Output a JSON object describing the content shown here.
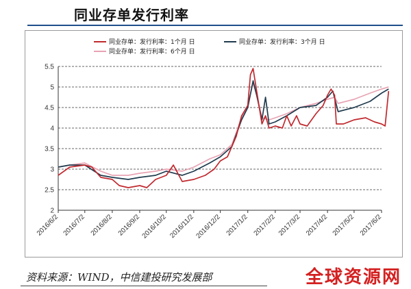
{
  "header": {
    "title": "同业存单发行利率"
  },
  "footer": {
    "source": "资料来源：WIND，中信建投研究发展部",
    "watermark": "全球资源网"
  },
  "chart_data": {
    "type": "line",
    "title": "同业存单发行利率",
    "xlabel": "",
    "ylabel": "",
    "ylim": [
      2,
      5.5
    ],
    "yticks": [
      2,
      2.5,
      3,
      3.5,
      4,
      4.5,
      5,
      5.5
    ],
    "xticks": [
      "2016/6/2",
      "2016/7/2",
      "2016/8/2",
      "2016/9/2",
      "2016/10/2",
      "2016/11/2",
      "2016/12/2",
      "2017/1/2",
      "2017/2/2",
      "2017/3/2",
      "2017/4/2",
      "2017/5/2",
      "2017/6/2"
    ],
    "grid": "horizontal dashed",
    "legend_position": "top-left",
    "series": [
      {
        "name": "同业存单：发行利率：1个月 日",
        "color": "#c0282d",
        "points": [
          [
            "2016/6/2",
            2.85
          ],
          [
            "2016/6/15",
            3.05
          ],
          [
            "2016/7/2",
            3.1
          ],
          [
            "2016/7/10",
            3.05
          ],
          [
            "2016/7/20",
            2.8
          ],
          [
            "2016/8/2",
            2.75
          ],
          [
            "2016/8/10",
            2.6
          ],
          [
            "2016/8/20",
            2.55
          ],
          [
            "2016/9/2",
            2.6
          ],
          [
            "2016/9/10",
            2.55
          ],
          [
            "2016/9/20",
            2.75
          ],
          [
            "2016/10/2",
            2.85
          ],
          [
            "2016/10/10",
            3.1
          ],
          [
            "2016/10/20",
            2.7
          ],
          [
            "2016/11/2",
            2.75
          ],
          [
            "2016/11/15",
            2.85
          ],
          [
            "2016/11/25",
            3.0
          ],
          [
            "2016/12/2",
            3.2
          ],
          [
            "2016/12/10",
            3.3
          ],
          [
            "2016/12/20",
            3.8
          ],
          [
            "2016/12/26",
            4.3
          ],
          [
            "2017/1/2",
            4.55
          ],
          [
            "2017/1/5",
            5.3
          ],
          [
            "2017/1/8",
            5.45
          ],
          [
            "2017/1/12",
            4.9
          ],
          [
            "2017/1/18",
            4.1
          ],
          [
            "2017/1/22",
            4.3
          ],
          [
            "2017/1/26",
            4.0
          ],
          [
            "2017/2/2",
            4.05
          ],
          [
            "2017/2/10",
            4.0
          ],
          [
            "2017/2/15",
            4.3
          ],
          [
            "2017/2/20",
            4.05
          ],
          [
            "2017/2/26",
            4.3
          ],
          [
            "2017/3/2",
            4.1
          ],
          [
            "2017/3/10",
            4.05
          ],
          [
            "2017/3/20",
            4.35
          ],
          [
            "2017/3/28",
            4.55
          ],
          [
            "2017/4/2",
            4.8
          ],
          [
            "2017/4/6",
            4.95
          ],
          [
            "2017/4/10",
            4.8
          ],
          [
            "2017/4/12",
            4.1
          ],
          [
            "2017/4/20",
            4.1
          ],
          [
            "2017/5/2",
            4.2
          ],
          [
            "2017/5/15",
            4.25
          ],
          [
            "2017/5/25",
            4.15
          ],
          [
            "2017/6/2",
            4.1
          ],
          [
            "2017/6/6",
            4.05
          ],
          [
            "2017/6/10",
            4.9
          ]
        ]
      },
      {
        "name": "同业存单：发行利率：3个月 日",
        "color": "#1f3a4d",
        "points": [
          [
            "2016/6/2",
            3.05
          ],
          [
            "2016/6/15",
            3.1
          ],
          [
            "2016/7/2",
            3.1
          ],
          [
            "2016/7/20",
            2.85
          ],
          [
            "2016/8/2",
            2.8
          ],
          [
            "2016/8/20",
            2.75
          ],
          [
            "2016/9/2",
            2.8
          ],
          [
            "2016/9/20",
            2.85
          ],
          [
            "2016/10/2",
            2.95
          ],
          [
            "2016/10/20",
            2.85
          ],
          [
            "2016/11/2",
            2.95
          ],
          [
            "2016/11/20",
            3.15
          ],
          [
            "2016/12/2",
            3.3
          ],
          [
            "2016/12/15",
            3.55
          ],
          [
            "2016/12/26",
            4.2
          ],
          [
            "2017/1/2",
            4.5
          ],
          [
            "2017/1/8",
            5.15
          ],
          [
            "2017/1/12",
            4.8
          ],
          [
            "2017/1/18",
            4.2
          ],
          [
            "2017/1/22",
            4.75
          ],
          [
            "2017/1/26",
            4.1
          ],
          [
            "2017/2/2",
            4.15
          ],
          [
            "2017/2/15",
            4.3
          ],
          [
            "2017/3/2",
            4.5
          ],
          [
            "2017/3/20",
            4.55
          ],
          [
            "2017/4/2",
            4.75
          ],
          [
            "2017/4/8",
            4.9
          ],
          [
            "2017/4/14",
            4.4
          ],
          [
            "2017/5/2",
            4.5
          ],
          [
            "2017/5/20",
            4.65
          ],
          [
            "2017/6/2",
            4.85
          ],
          [
            "2017/6/10",
            4.95
          ]
        ]
      },
      {
        "name": "同业存单：发行利率：6个月 日",
        "color": "#e7a3b3",
        "points": [
          [
            "2016/6/2",
            3.05
          ],
          [
            "2016/6/15",
            3.1
          ],
          [
            "2016/7/2",
            3.15
          ],
          [
            "2016/7/20",
            2.95
          ],
          [
            "2016/8/2",
            2.85
          ],
          [
            "2016/8/20",
            2.85
          ],
          [
            "2016/9/2",
            2.9
          ],
          [
            "2016/9/20",
            2.95
          ],
          [
            "2016/10/2",
            3.0
          ],
          [
            "2016/10/20",
            2.95
          ],
          [
            "2016/11/2",
            3.05
          ],
          [
            "2016/11/20",
            3.25
          ],
          [
            "2016/12/2",
            3.35
          ],
          [
            "2016/12/15",
            3.6
          ],
          [
            "2016/12/26",
            4.25
          ],
          [
            "2017/1/2",
            4.55
          ],
          [
            "2017/1/8",
            5.1
          ],
          [
            "2017/1/12",
            4.8
          ],
          [
            "2017/1/18",
            4.25
          ],
          [
            "2017/1/26",
            4.2
          ],
          [
            "2017/2/2",
            4.25
          ],
          [
            "2017/2/15",
            4.35
          ],
          [
            "2017/3/2",
            4.5
          ],
          [
            "2017/3/20",
            4.6
          ],
          [
            "2017/4/2",
            4.7
          ],
          [
            "2017/4/10",
            4.75
          ],
          [
            "2017/4/14",
            4.6
          ],
          [
            "2017/5/2",
            4.7
          ],
          [
            "2017/5/20",
            4.85
          ],
          [
            "2017/6/2",
            4.95
          ],
          [
            "2017/6/10",
            5.0
          ]
        ]
      }
    ]
  }
}
